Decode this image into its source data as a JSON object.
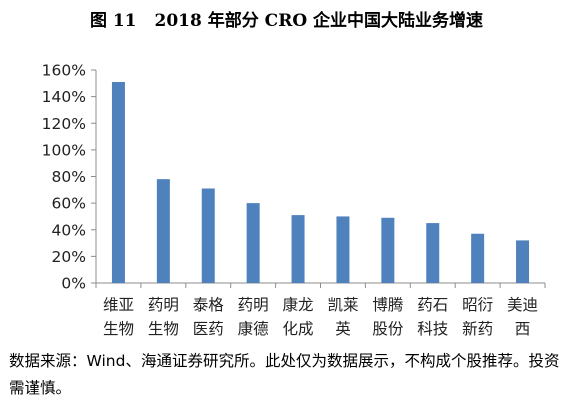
{
  "figure": {
    "number": "图 11",
    "title": "2018 年部分 CRO 企业中国大陆业务增速"
  },
  "source_note": "数据来源：Wind、海通证券研究所。此处仅为数据展示，不构成个股推荐。投资需谨慎。",
  "chart_data": {
    "type": "bar",
    "categories": [
      [
        "维亚",
        "生物"
      ],
      [
        "药明",
        "生物"
      ],
      [
        "泰格",
        "医药"
      ],
      [
        "药明",
        "康德"
      ],
      [
        "康龙",
        "化成"
      ],
      [
        "凯莱",
        "英"
      ],
      [
        "博腾",
        "股份"
      ],
      [
        "药石",
        "科技"
      ],
      [
        "昭衍",
        "新药"
      ],
      [
        "美迪",
        "西"
      ]
    ],
    "values": [
      151,
      78,
      71,
      60,
      51,
      50,
      49,
      45,
      37,
      32
    ],
    "value_unit": "%",
    "ylim": [
      0,
      160
    ],
    "yticks": [
      0,
      20,
      40,
      60,
      80,
      100,
      120,
      140,
      160
    ],
    "ytick_labels": [
      "0%",
      "20%",
      "40%",
      "60%",
      "80%",
      "100%",
      "120%",
      "140%",
      "160%"
    ],
    "grid": false,
    "bar_color": "#4f81bd"
  }
}
